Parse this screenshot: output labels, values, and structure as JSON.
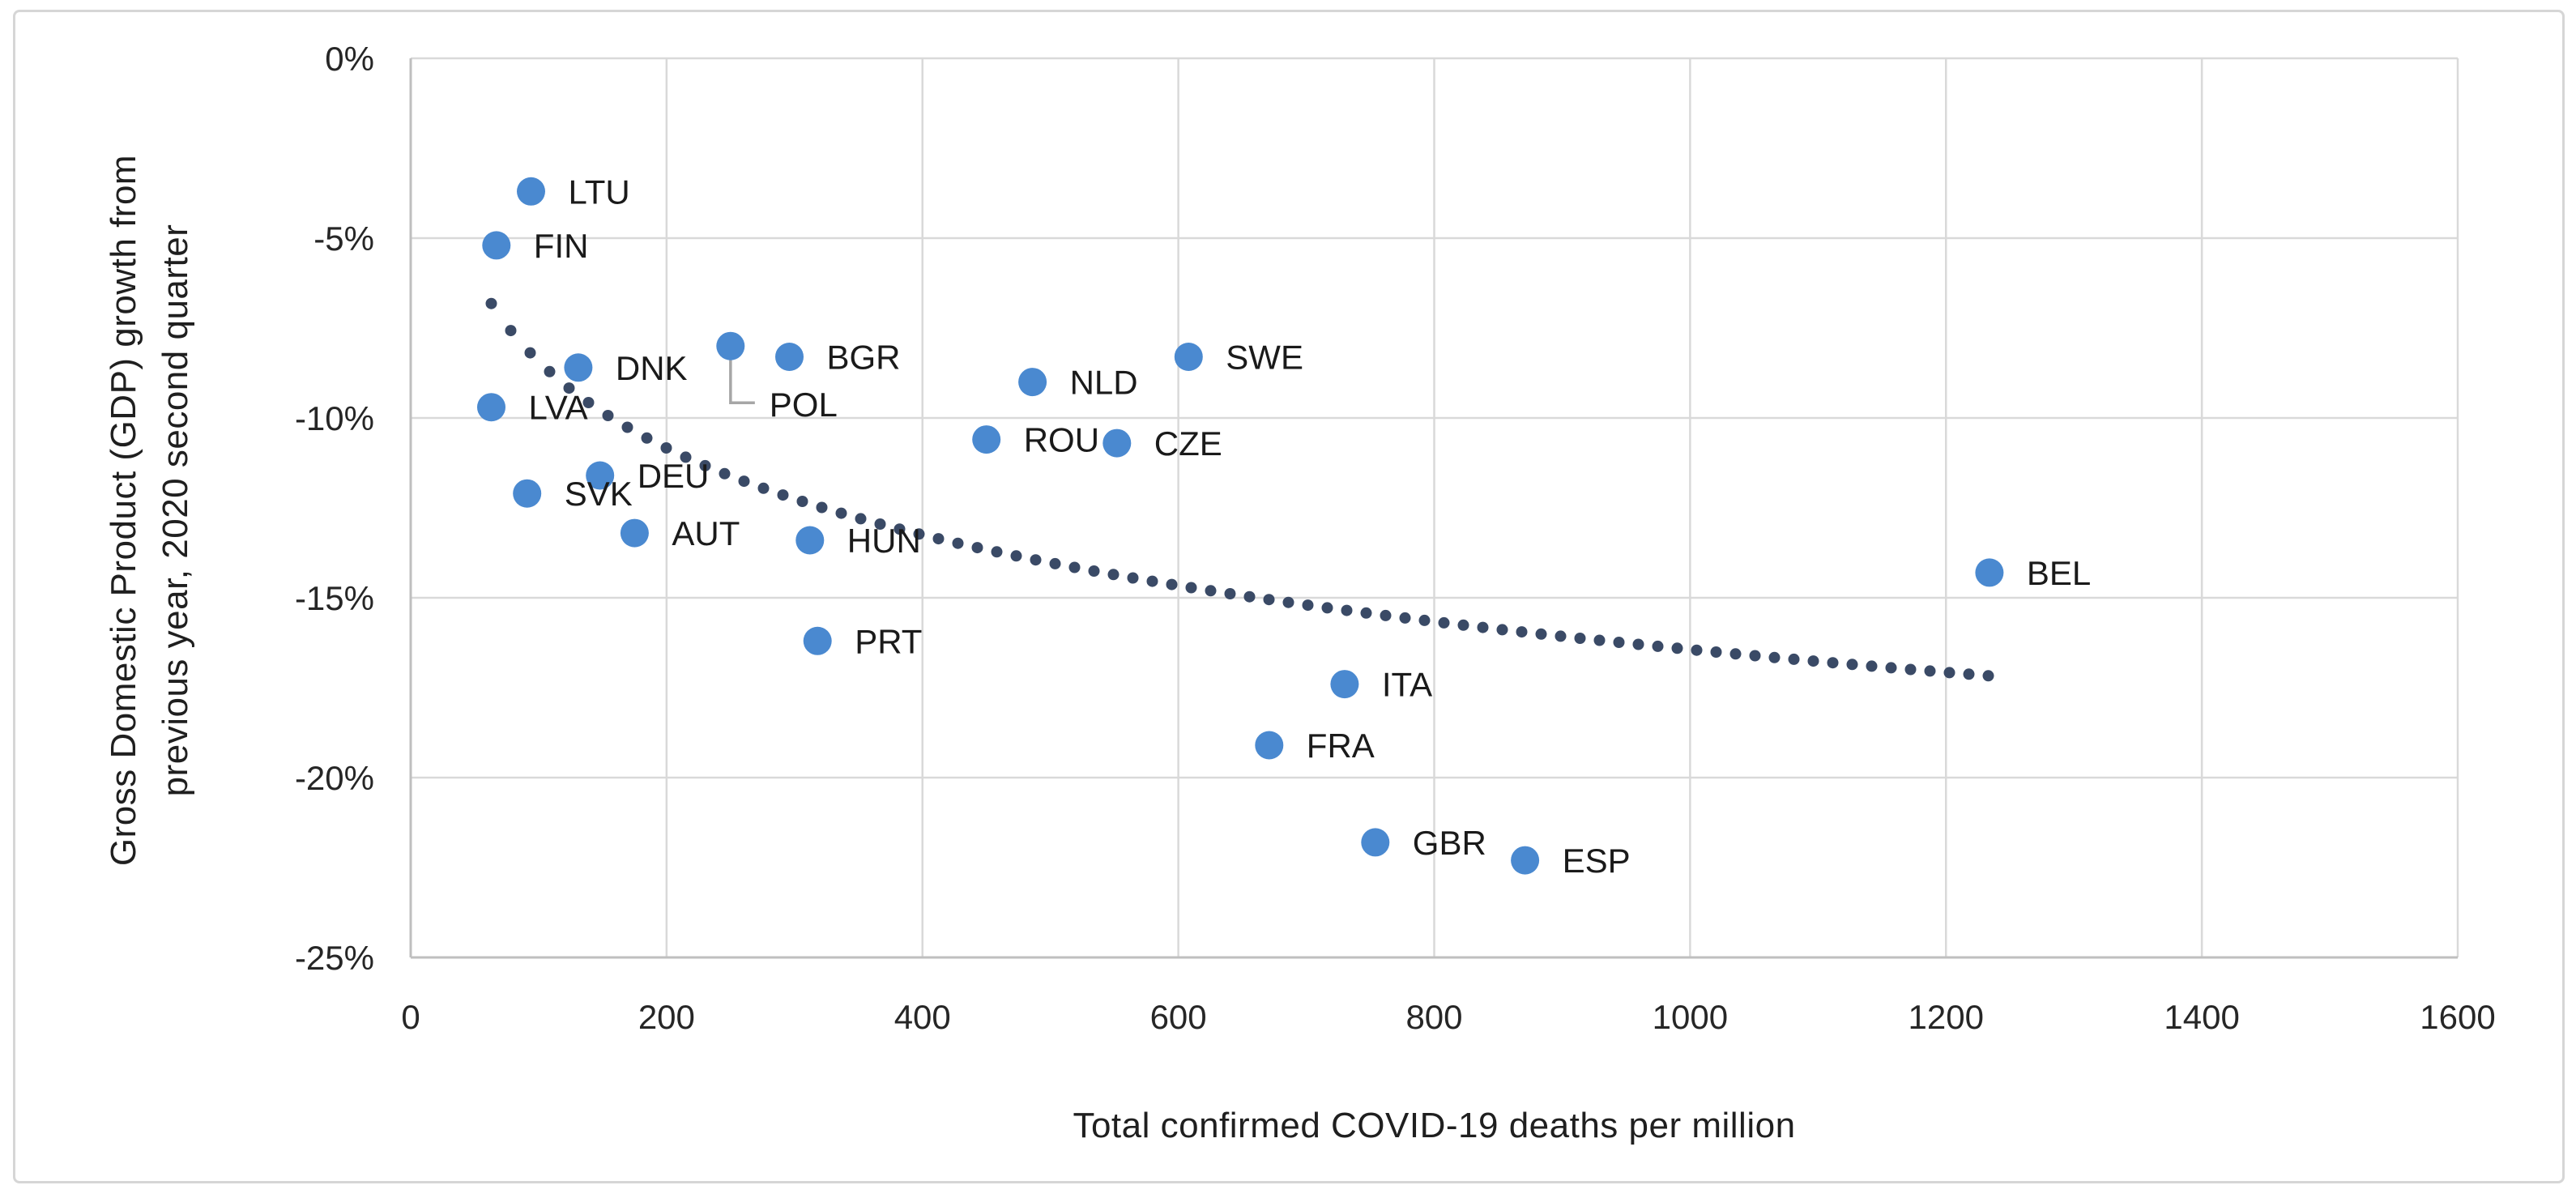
{
  "figure": {
    "x_axis_title": "Total confirmed COVID-19 deaths per million",
    "y_axis_title_line1": "Gross Domestic Product (GDP) growth from",
    "y_axis_title_line2": "previous year, 2020 second quarter"
  },
  "chart_data": {
    "type": "scatter",
    "title": "",
    "xlabel": "Total confirmed COVID-19 deaths per million",
    "ylabel": "Gross Domestic Product (GDP) growth from previous year, 2020 second quarter",
    "xlim": [
      0,
      1600
    ],
    "ylim": [
      -25,
      0
    ],
    "grid": true,
    "legend": "none",
    "x_ticks": [
      0,
      200,
      400,
      600,
      800,
      1000,
      1200,
      1400,
      1600
    ],
    "y_ticks": [
      0,
      -5,
      -10,
      -15,
      -20,
      -25
    ],
    "y_tick_labels": [
      "0%",
      "-5%",
      "-10%",
      "-15%",
      "-20%",
      "-25%"
    ],
    "colors": {
      "marker": "#4a89d0",
      "trendline": "#3a4a66",
      "gridline": "#d9d9d9",
      "axis_line": "#bfbfbf",
      "text": "#262626",
      "leader_line": "#a6a6a6"
    },
    "points": [
      {
        "code": "LTU",
        "x": 94,
        "y": -3.7
      },
      {
        "code": "FIN",
        "x": 67,
        "y": -5.2
      },
      {
        "code": "DNK",
        "x": 131,
        "y": -8.6
      },
      {
        "code": "POL",
        "x": 250,
        "y": -8.0,
        "leader": true,
        "label_dx": 48,
        "label_dy": 72
      },
      {
        "code": "BGR",
        "x": 296,
        "y": -8.3
      },
      {
        "code": "LVA",
        "x": 63,
        "y": -9.7
      },
      {
        "code": "NLD",
        "x": 486,
        "y": -9.0
      },
      {
        "code": "SWE",
        "x": 608,
        "y": -8.3
      },
      {
        "code": "ROU",
        "x": 450,
        "y": -10.6
      },
      {
        "code": "CZE",
        "x": 552,
        "y": -10.7
      },
      {
        "code": "DEU",
        "x": 148,
        "y": -11.6
      },
      {
        "code": "SVK",
        "x": 91,
        "y": -12.1
      },
      {
        "code": "AUT",
        "x": 175,
        "y": -13.2
      },
      {
        "code": "HUN",
        "x": 312,
        "y": -13.4
      },
      {
        "code": "PRT",
        "x": 318,
        "y": -16.2
      },
      {
        "code": "BEL",
        "x": 1234,
        "y": -14.3
      },
      {
        "code": "ITA",
        "x": 730,
        "y": -17.4
      },
      {
        "code": "FRA",
        "x": 671,
        "y": -19.1
      },
      {
        "code": "GBR",
        "x": 754,
        "y": -21.8
      },
      {
        "code": "ESP",
        "x": 871,
        "y": -22.3
      }
    ],
    "trendline": {
      "type": "logarithmic",
      "style": "dotted",
      "formula": "y = 7.6 - 3.48*ln(x)",
      "a": -3.48,
      "b": 7.6,
      "x_start": 63,
      "x_end": 1248
    }
  }
}
